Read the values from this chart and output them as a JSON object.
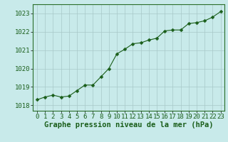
{
  "x": [
    0,
    1,
    2,
    3,
    4,
    5,
    6,
    7,
    8,
    9,
    10,
    11,
    12,
    13,
    14,
    15,
    16,
    17,
    18,
    19,
    20,
    21,
    22,
    23
  ],
  "y": [
    1018.3,
    1018.45,
    1018.55,
    1018.45,
    1018.5,
    1018.8,
    1019.1,
    1019.1,
    1019.55,
    1020.0,
    1020.8,
    1021.05,
    1021.35,
    1021.4,
    1021.55,
    1021.65,
    1022.05,
    1022.1,
    1022.1,
    1022.45,
    1022.5,
    1022.6,
    1022.8,
    1023.1
  ],
  "line_color": "#1a5e1a",
  "marker_color": "#1a5e1a",
  "bg_color": "#c8eaea",
  "grid_color": "#a8c8c8",
  "xlabel": "Graphe pression niveau de la mer (hPa)",
  "ylim": [
    1017.7,
    1023.5
  ],
  "xlim": [
    -0.5,
    23.5
  ],
  "yticks": [
    1018,
    1019,
    1020,
    1021,
    1022,
    1023
  ],
  "xticks": [
    0,
    1,
    2,
    3,
    4,
    5,
    6,
    7,
    8,
    9,
    10,
    11,
    12,
    13,
    14,
    15,
    16,
    17,
    18,
    19,
    20,
    21,
    22,
    23
  ],
  "tick_label_color": "#1a5e1a",
  "xlabel_color": "#1a5e1a",
  "xlabel_fontsize": 7.5,
  "tick_fontsize": 6.5,
  "marker_size": 2.5,
  "linewidth": 0.8
}
